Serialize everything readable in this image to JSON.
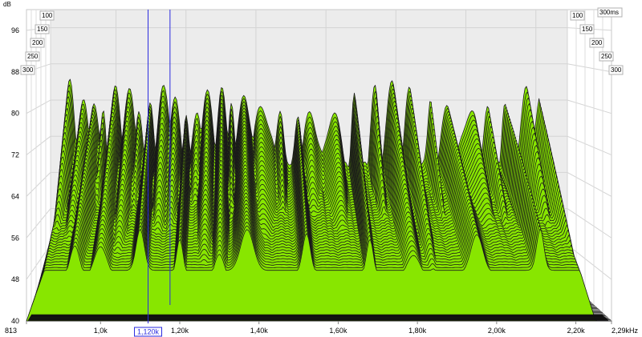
{
  "chart_data": {
    "type": "area",
    "y_unit": "dB",
    "x_unit_suffix": "kHz",
    "x_range_hz": [
      813,
      2290
    ],
    "y_range_db": [
      40,
      100
    ],
    "grid": true,
    "y_ticks": [
      {
        "label": "40",
        "value": 40
      },
      {
        "label": "48",
        "value": 48
      },
      {
        "label": "56",
        "value": 56
      },
      {
        "label": "64",
        "value": 64
      },
      {
        "label": "72",
        "value": 72
      },
      {
        "label": "80",
        "value": 80
      },
      {
        "label": "88",
        "value": 88
      },
      {
        "label": "96",
        "value": 96
      }
    ],
    "x_ticks": [
      {
        "label": "813",
        "value": 813
      },
      {
        "label": "1,0k",
        "value": 1000
      },
      {
        "label": "1,20k",
        "value": 1200
      },
      {
        "label": "1,40k",
        "value": 1400
      },
      {
        "label": "1,60k",
        "value": 1600
      },
      {
        "label": "1,80k",
        "value": 1800
      },
      {
        "label": "2,00k",
        "value": 2000
      },
      {
        "label": "2,20k",
        "value": 2200
      },
      {
        "label": "2,29kHz",
        "value": 2290
      }
    ],
    "time_ticks_left": [
      "100",
      "150",
      "200",
      "250",
      "300"
    ],
    "time_ticks_right": [
      "300ms",
      "100",
      "150",
      "200",
      "250",
      "300"
    ],
    "cursor": {
      "label": "1,120k",
      "value_hz": 1120
    },
    "slice_count": 40,
    "fill_color": "#88e600",
    "line_color": "#1a1a1a",
    "back_wall_color": "#ececec",
    "cursor_color": "#2a2adf",
    "peaks": [
      {
        "f": 870,
        "db": 82
      },
      {
        "f": 905,
        "db": 77
      },
      {
        "f": 935,
        "db": 81
      },
      {
        "f": 965,
        "db": 78
      },
      {
        "f": 1000,
        "db": 80
      },
      {
        "f": 1035,
        "db": 80
      },
      {
        "f": 1065,
        "db": 80
      },
      {
        "f": 1100,
        "db": 80
      },
      {
        "f": 1140,
        "db": 81
      },
      {
        "f": 1165,
        "db": 79
      },
      {
        "f": 1200,
        "db": 79
      },
      {
        "f": 1235,
        "db": 78
      },
      {
        "f": 1260,
        "db": 79
      },
      {
        "f": 1300,
        "db": 81
      },
      {
        "f": 1330,
        "db": 82
      },
      {
        "f": 1370,
        "db": 82
      },
      {
        "f": 1420,
        "db": 80
      },
      {
        "f": 1470,
        "db": 80
      },
      {
        "f": 1520,
        "db": 79
      },
      {
        "f": 1560,
        "db": 78
      },
      {
        "f": 1620,
        "db": 79
      },
      {
        "f": 1680,
        "db": 80
      },
      {
        "f": 1740,
        "db": 80
      },
      {
        "f": 1790,
        "db": 81
      },
      {
        "f": 1840,
        "db": 80
      },
      {
        "f": 1900,
        "db": 81
      },
      {
        "f": 1950,
        "db": 80
      },
      {
        "f": 2010,
        "db": 79
      },
      {
        "f": 2060,
        "db": 80
      },
      {
        "f": 2110,
        "db": 80
      },
      {
        "f": 2170,
        "db": 80
      },
      {
        "f": 2210,
        "db": 80
      }
    ]
  }
}
